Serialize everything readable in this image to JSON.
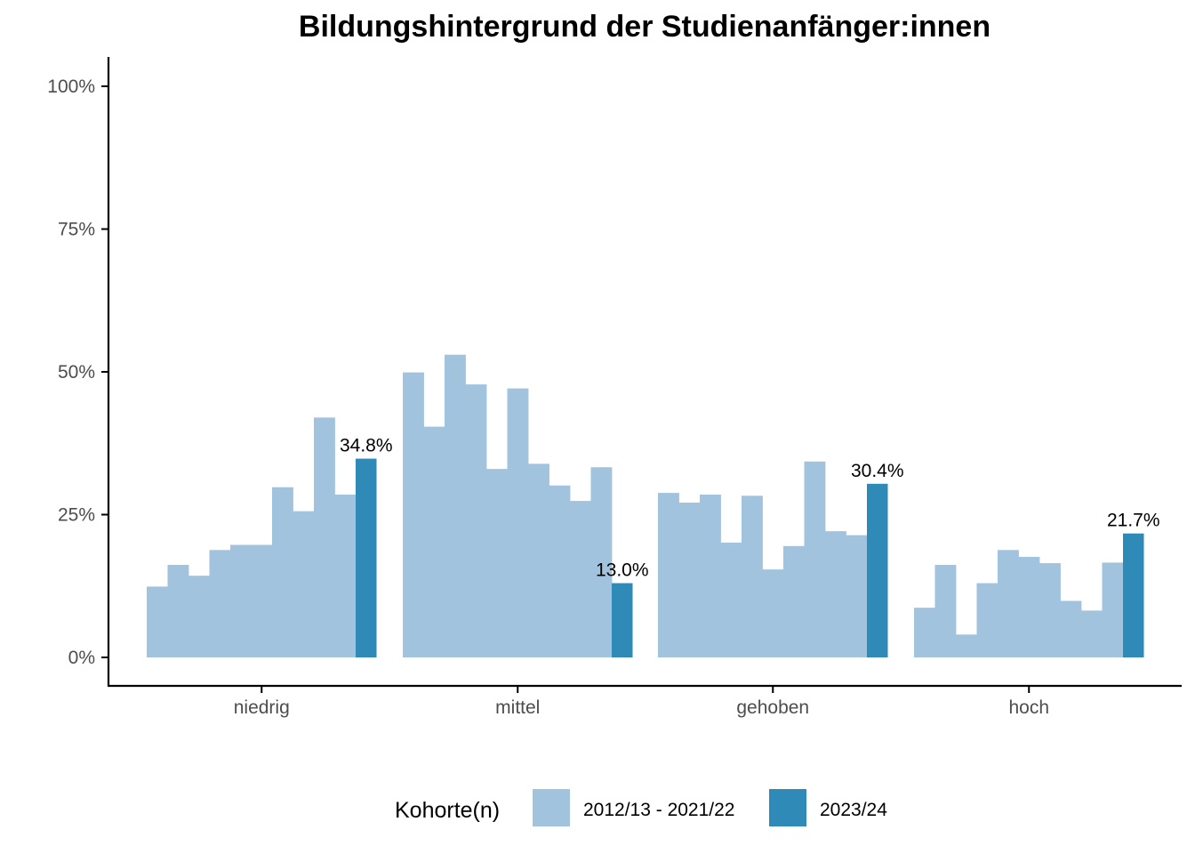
{
  "chart_data": {
    "type": "bar",
    "title": "Bildungshintergrund der Studienanfänger:innen",
    "xlabel": "",
    "ylabel": "",
    "ylim": [
      0,
      100
    ],
    "y_ticks": [
      0,
      25,
      50,
      75,
      100
    ],
    "y_tick_labels": [
      "0%",
      "25%",
      "50%",
      "75%",
      "100%"
    ],
    "grid": false,
    "categories": [
      "niedrig",
      "mittel",
      "gehoben",
      "hoch"
    ],
    "series": [
      {
        "name": "2012/13 - 2021/22",
        "color": "#a2c3de",
        "values": [
          [
            12.4,
            16.2,
            14.3,
            18.8,
            19.7,
            19.7,
            29.8,
            25.6,
            42.0,
            28.5
          ],
          [
            49.9,
            40.4,
            53.0,
            47.8,
            33.0,
            47.1,
            33.9,
            30.1,
            27.4,
            33.3
          ],
          [
            28.8,
            27.1,
            28.5,
            20.1,
            28.3,
            15.4,
            19.5,
            34.3,
            22.1,
            21.4
          ],
          [
            8.7,
            16.2,
            4.0,
            13.0,
            18.8,
            17.6,
            16.5,
            9.9,
            8.2,
            16.6
          ]
        ]
      },
      {
        "name": "2023/24",
        "color": "#2f8ab8",
        "values": [
          34.8,
          13.0,
          30.4,
          21.7
        ],
        "labels": [
          "34.8%",
          "13.0%",
          "30.4%",
          "21.7%"
        ]
      }
    ],
    "legend": {
      "title": "Kohorte(n)",
      "position": "bottom",
      "entries": [
        "2012/13 - 2021/22",
        "2023/24"
      ]
    }
  }
}
